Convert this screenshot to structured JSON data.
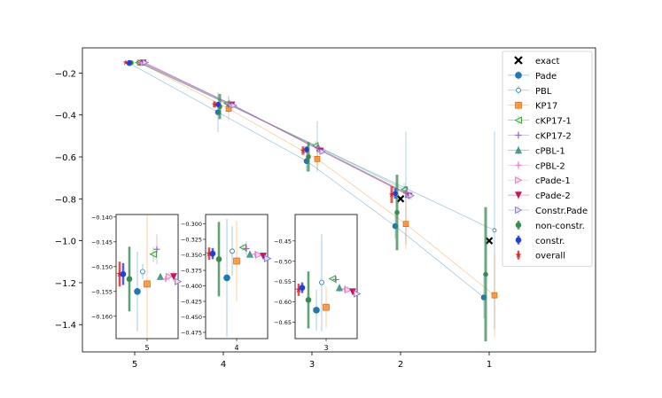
{
  "chart_data": {
    "type": "scatter",
    "x_categories": [
      "5",
      "4",
      "3",
      "2",
      "1"
    ],
    "ylim": [
      -1.53,
      -0.08
    ],
    "y_ticks": [
      -0.2,
      -0.4,
      -0.6,
      -0.8,
      -1.0,
      -1.2,
      -1.4
    ],
    "y_tick_labels": [
      "−0.2",
      "−0.4",
      "−0.6",
      "−0.8",
      "−1.0",
      "−1.2",
      "−1.4"
    ],
    "x_tick_labels": [
      "5",
      "4",
      "3",
      "2",
      "1"
    ],
    "grid": false,
    "legend_position": "upper-right",
    "series": [
      {
        "name": "exact",
        "color": "#000000",
        "marker": "x",
        "size": 7,
        "line": false,
        "points": [
          {
            "x": 2,
            "y": -0.8
          },
          {
            "x": 1,
            "y": -1.0
          }
        ]
      },
      {
        "name": "Pade",
        "color": "#1f77b4",
        "marker": "o",
        "size": 6,
        "line": true,
        "points": [
          {
            "x": 5,
            "y": -0.153,
            "err": 0.005
          },
          {
            "x": 4,
            "y": -0.387,
            "err": 0.095
          },
          {
            "x": 3,
            "y": -0.62,
            "err": 0.05
          },
          {
            "x": 2,
            "y": -0.93,
            "err": 0.06
          },
          {
            "x": 1,
            "y": -1.27,
            "err": 0.1
          }
        ]
      },
      {
        "name": "PBL",
        "color": "#1f77b4",
        "marker": "smallo",
        "size": 4,
        "line": true,
        "points": [
          {
            "x": 5,
            "y": -0.15,
            "err": 0.004
          },
          {
            "x": 4,
            "y": -0.35,
            "err": 0.04
          },
          {
            "x": 3,
            "y": -0.55,
            "err": 0.12
          },
          {
            "x": 2,
            "y": -0.75,
            "err": 0.27
          },
          {
            "x": 1,
            "y": -0.95,
            "err": 0.47
          }
        ]
      },
      {
        "name": "KP17",
        "color": "#ff7f0e",
        "marker": "s",
        "size": 6,
        "line": true,
        "points": [
          {
            "x": 5,
            "y": -0.151,
            "err": 0.01
          },
          {
            "x": 4,
            "y": -0.37,
            "err": 0.06
          },
          {
            "x": 3,
            "y": -0.61,
            "err": 0.05
          },
          {
            "x": 2,
            "y": -0.92,
            "err": 0.12
          },
          {
            "x": 1,
            "y": -1.26,
            "err": 0.2
          }
        ]
      },
      {
        "name": "cKP17-1",
        "color": "#2ca02c",
        "marker": "tri-left",
        "size": 6,
        "line": true,
        "points": [
          {
            "x": 5,
            "y": -0.15,
            "err": 0.002
          },
          {
            "x": 4,
            "y": -0.345,
            "err": 0.01
          },
          {
            "x": 3,
            "y": -0.545,
            "err": 0.02
          },
          {
            "x": 2,
            "y": -0.755,
            "err": 0.03
          }
        ]
      },
      {
        "name": "cKP17-2",
        "color": "#9467bd",
        "marker": "plus",
        "size": 6,
        "line": true,
        "points": [
          {
            "x": 5,
            "y": -0.15,
            "err": 0.002
          },
          {
            "x": 4,
            "y": -0.35,
            "err": 0.01
          },
          {
            "x": 3,
            "y": -0.555,
            "err": 0.02
          },
          {
            "x": 2,
            "y": -0.77,
            "err": 0.03
          }
        ]
      },
      {
        "name": "cPBL-1",
        "color": "#2a8a7a",
        "marker": "tri-up",
        "size": 6,
        "line": true,
        "points": [
          {
            "x": 5,
            "y": -0.15,
            "err": 0.002
          },
          {
            "x": 4,
            "y": -0.35,
            "err": 0.01
          },
          {
            "x": 3,
            "y": -0.56,
            "err": 0.015
          },
          {
            "x": 2,
            "y": -0.78,
            "err": 0.02
          }
        ]
      },
      {
        "name": "cPBL-2",
        "color": "#e377c2",
        "marker": "plus",
        "size": 6,
        "line": true,
        "points": [
          {
            "x": 5,
            "y": -0.15,
            "err": 0.002
          },
          {
            "x": 4,
            "y": -0.35,
            "err": 0.01
          },
          {
            "x": 3,
            "y": -0.565,
            "err": 0.015
          },
          {
            "x": 2,
            "y": -0.78,
            "err": 0.02
          }
        ]
      },
      {
        "name": "cPade-1",
        "color": "#e377c2",
        "marker": "tri-right",
        "size": 6,
        "line": true,
        "points": [
          {
            "x": 5,
            "y": -0.15,
            "err": 0.002
          },
          {
            "x": 4,
            "y": -0.35,
            "err": 0.01
          },
          {
            "x": 3,
            "y": -0.565,
            "err": 0.015
          },
          {
            "x": 2,
            "y": -0.78,
            "err": 0.02
          }
        ]
      },
      {
        "name": "cPade-2",
        "color": "#c2185b",
        "marker": "tri-down",
        "size": 6,
        "line": true,
        "points": [
          {
            "x": 5,
            "y": -0.15,
            "err": 0.002
          },
          {
            "x": 4,
            "y": -0.35,
            "err": 0.01
          },
          {
            "x": 3,
            "y": -0.57,
            "err": 0.015
          },
          {
            "x": 2,
            "y": -0.785,
            "err": 0.02
          }
        ]
      },
      {
        "name": "Constr.Pade",
        "color": "#7b7bd6",
        "marker": "tri-right",
        "size": 6,
        "line": true,
        "points": [
          {
            "x": 5,
            "y": -0.15,
            "err": 0.002
          },
          {
            "x": 4,
            "y": -0.355,
            "err": 0.01
          },
          {
            "x": 3,
            "y": -0.575,
            "err": 0.015
          },
          {
            "x": 2,
            "y": -0.785,
            "err": 0.02
          }
        ]
      },
      {
        "name": "non-constr.",
        "color": "#3b8a4f",
        "marker": "o",
        "size": 5,
        "line": false,
        "thick_err": true,
        "points": [
          {
            "x": 5,
            "y": -0.151,
            "err": 0.01
          },
          {
            "x": 4,
            "y": -0.36,
            "err": 0.06
          },
          {
            "x": 3,
            "y": -0.6,
            "err": 0.07
          },
          {
            "x": 2,
            "y": -0.865,
            "err": 0.18
          },
          {
            "x": 1,
            "y": -1.16,
            "err": 0.32
          }
        ]
      },
      {
        "name": "constr.",
        "color": "#1f3fd6",
        "marker": "o",
        "size": 5,
        "line": false,
        "thick_err": true,
        "points": [
          {
            "x": 5,
            "y": -0.15,
            "err": 0.003
          },
          {
            "x": 4,
            "y": -0.35,
            "err": 0.012
          },
          {
            "x": 3,
            "y": -0.565,
            "err": 0.015
          },
          {
            "x": 2,
            "y": -0.775,
            "err": 0.025
          }
        ]
      },
      {
        "name": "overall",
        "color": "#d62728",
        "marker": "star",
        "size": 5,
        "line": false,
        "thick_err": true,
        "points": [
          {
            "x": 5,
            "y": -0.15,
            "err": 0.005
          },
          {
            "x": 4,
            "y": -0.35,
            "err": 0.015
          },
          {
            "x": 3,
            "y": -0.57,
            "err": 0.02
          },
          {
            "x": 2,
            "y": -0.78,
            "err": 0.04
          }
        ]
      }
    ],
    "insets": [
      {
        "label": "5",
        "ylim": [
          -0.1645,
          -0.1395
        ],
        "ticks": [
          -0.14,
          -0.145,
          -0.15,
          -0.155,
          -0.16
        ],
        "tick_labels": [
          "−0.140",
          "−0.145",
          "−0.150",
          "−0.155",
          "−0.160"
        ],
        "points": [
          {
            "series": "overall",
            "y": -0.1515,
            "err": 0.0025
          },
          {
            "series": "constr.",
            "y": -0.1515,
            "err": 0.0022
          },
          {
            "series": "non-constr.",
            "y": -0.1525,
            "err": 0.0065
          },
          {
            "series": "Pade",
            "y": -0.155,
            "err": 0.008
          },
          {
            "series": "PBL",
            "y": -0.151,
            "err": 0.0015
          },
          {
            "series": "KP17",
            "y": -0.1535,
            "err": 0.0175
          },
          {
            "series": "cKP17-1",
            "y": -0.1475,
            "err": 0.0015
          },
          {
            "series": "cKP17-2",
            "y": -0.1465,
            "err": 0.003
          },
          {
            "series": "cPBL-1",
            "y": -0.152,
            "err": 0.0005
          },
          {
            "series": "cPBL-2",
            "y": -0.1525,
            "err": 0.0005
          },
          {
            "series": "cPade-1",
            "y": -0.152,
            "err": 0.001
          },
          {
            "series": "cPade-2",
            "y": -0.152,
            "err": 0.001
          },
          {
            "series": "Constr.Pade",
            "y": -0.153,
            "err": 0.0005
          }
        ]
      },
      {
        "label": "4",
        "ylim": [
          -0.485,
          -0.285
        ],
        "ticks": [
          -0.3,
          -0.325,
          -0.35,
          -0.375,
          -0.4,
          -0.425,
          -0.45,
          -0.475
        ],
        "tick_labels": [
          "−0.300",
          "−0.325",
          "−0.350",
          "−0.375",
          "−0.400",
          "−0.425",
          "−0.450",
          "−0.475"
        ],
        "points": [
          {
            "series": "overall",
            "y": -0.348,
            "err": 0.01
          },
          {
            "series": "constr.",
            "y": -0.348,
            "err": 0.009
          },
          {
            "series": "non-constr.",
            "y": -0.357,
            "err": 0.06
          },
          {
            "series": "Pade",
            "y": -0.387,
            "err": 0.095
          },
          {
            "series": "PBL",
            "y": -0.344,
            "err": 0.04
          },
          {
            "series": "KP17",
            "y": -0.36,
            "err": 0.065
          },
          {
            "series": "cKP17-1",
            "y": -0.338,
            "err": 0.006
          },
          {
            "series": "cKP17-2",
            "y": -0.34,
            "err": 0.012
          },
          {
            "series": "cPBL-1",
            "y": -0.349,
            "err": 0.003
          },
          {
            "series": "cPBL-2",
            "y": -0.349,
            "err": 0.004
          },
          {
            "series": "cPade-1",
            "y": -0.35,
            "err": 0.003
          },
          {
            "series": "cPade-2",
            "y": -0.352,
            "err": 0.004
          },
          {
            "series": "Constr.Pade",
            "y": -0.356,
            "err": 0.002
          }
        ]
      },
      {
        "label": "3",
        "ylim": [
          -0.69,
          -0.385
        ],
        "ticks": [
          -0.45,
          -0.5,
          -0.55,
          -0.6,
          -0.65
        ],
        "tick_labels": [
          "−0.45",
          "−0.50",
          "−0.55",
          "−0.60",
          "−0.65"
        ],
        "points": [
          {
            "series": "overall",
            "y": -0.57,
            "err": 0.015
          },
          {
            "series": "constr.",
            "y": -0.565,
            "err": 0.013
          },
          {
            "series": "non-constr.",
            "y": -0.595,
            "err": 0.07
          },
          {
            "series": "Pade",
            "y": -0.62,
            "err": 0.05
          },
          {
            "series": "PBL",
            "y": -0.552,
            "err": 0.12
          },
          {
            "series": "KP17",
            "y": -0.613,
            "err": 0.05
          },
          {
            "series": "cKP17-1",
            "y": -0.543,
            "err": 0.005
          },
          {
            "series": "cKP17-2",
            "y": -0.545,
            "err": 0.01
          },
          {
            "series": "cPBL-1",
            "y": -0.565,
            "err": 0.01
          },
          {
            "series": "cPBL-2",
            "y": -0.568,
            "err": 0.01
          },
          {
            "series": "cPade-1",
            "y": -0.57,
            "err": 0.008
          },
          {
            "series": "cPade-2",
            "y": -0.575,
            "err": 0.008
          },
          {
            "series": "Constr.Pade",
            "y": -0.58,
            "err": 0.005
          }
        ]
      }
    ]
  }
}
